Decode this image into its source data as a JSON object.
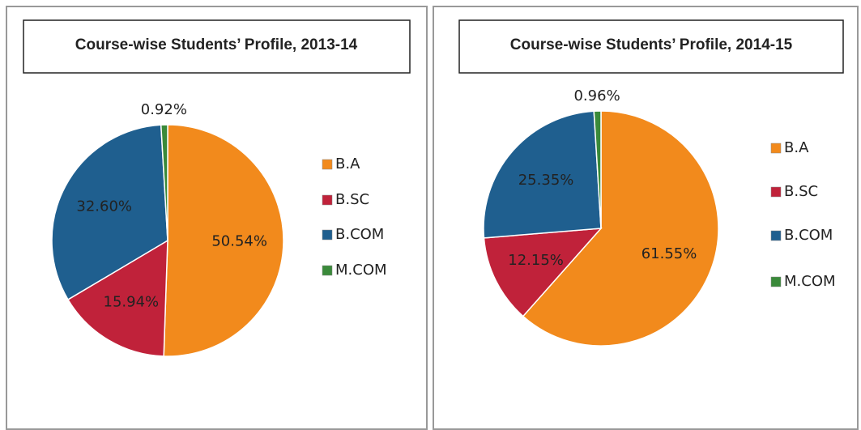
{
  "chart_data": [
    {
      "type": "pie",
      "title": "Course-wise Students’ Profile, 2013-14",
      "categories": [
        "B.A",
        "B.SC",
        "B.COM",
        "M.COM"
      ],
      "values": [
        50.54,
        15.94,
        32.6,
        0.92
      ],
      "value_labels": [
        "50.54%",
        "15.94%",
        "32.60%",
        "0.92%"
      ],
      "colors": [
        "#f28a1c",
        "#c0223a",
        "#1f5f8f",
        "#3a8a3a"
      ],
      "legend": "right"
    },
    {
      "type": "pie",
      "title": "Course-wise Students’ Profile, 2014-15",
      "categories": [
        "B.A",
        "B.SC",
        "B.COM",
        "M.COM"
      ],
      "values": [
        61.55,
        12.15,
        25.35,
        0.96
      ],
      "value_labels": [
        "61.55%",
        "12.15%",
        "25.35%",
        "0.96%"
      ],
      "colors": [
        "#f28a1c",
        "#c0223a",
        "#1f5f8f",
        "#3a8a3a"
      ],
      "legend": "right"
    }
  ]
}
